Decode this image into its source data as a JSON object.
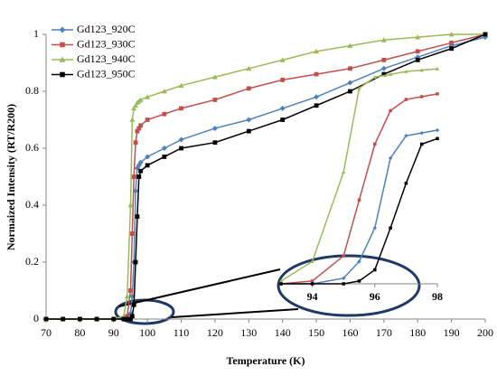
{
  "chart_data": {
    "type": "line",
    "x_label": "Temperature (K)",
    "y_label": "Normaized Intensity (RT/R200)",
    "x": [
      70,
      75,
      80,
      85,
      90,
      93,
      94,
      95,
      95.5,
      96,
      96.5,
      97,
      97.5,
      98,
      100,
      105,
      110,
      120,
      130,
      140,
      150,
      160,
      170,
      180,
      190,
      200
    ],
    "series": [
      {
        "name": "Gd123_920C",
        "color": "#4f81bd",
        "marker": "diamond",
        "values": [
          0,
          0,
          0,
          0,
          0,
          0,
          0,
          0.02,
          0.08,
          0.2,
          0.45,
          0.53,
          0.54,
          0.55,
          0.57,
          0.6,
          0.63,
          0.67,
          0.7,
          0.74,
          0.78,
          0.83,
          0.88,
          0.92,
          0.96,
          0.99
        ]
      },
      {
        "name": "Gd123_930C",
        "color": "#c0504d",
        "marker": "square",
        "values": [
          0,
          0,
          0,
          0,
          0,
          0,
          0.01,
          0.1,
          0.3,
          0.5,
          0.62,
          0.66,
          0.67,
          0.68,
          0.7,
          0.72,
          0.74,
          0.77,
          0.81,
          0.84,
          0.86,
          0.88,
          0.91,
          0.94,
          0.97,
          1.0
        ]
      },
      {
        "name": "Gd123_940C",
        "color": "#9bbb59",
        "marker": "triangle",
        "values": [
          0,
          0,
          0,
          0,
          0,
          0.01,
          0.08,
          0.4,
          0.7,
          0.74,
          0.75,
          0.76,
          0.765,
          0.77,
          0.78,
          0.8,
          0.82,
          0.85,
          0.88,
          0.91,
          0.94,
          0.96,
          0.98,
          0.99,
          1.0,
          1.0
        ]
      },
      {
        "name": "Gd123_950C",
        "color": "#000000",
        "marker": "square",
        "values": [
          0,
          0,
          0,
          0,
          0,
          0,
          0,
          0,
          0.01,
          0.05,
          0.2,
          0.36,
          0.5,
          0.52,
          0.54,
          0.57,
          0.6,
          0.62,
          0.66,
          0.7,
          0.75,
          0.8,
          0.86,
          0.91,
          0.95,
          1.0
        ]
      }
    ],
    "xlim": [
      70,
      200
    ],
    "xticks": [
      70,
      80,
      90,
      100,
      110,
      120,
      130,
      140,
      150,
      160,
      170,
      180,
      190,
      200
    ],
    "ylim": [
      0,
      1
    ],
    "yticks": [
      0,
      0.2,
      0.4,
      0.6,
      0.8,
      1
    ],
    "legend": "upper left",
    "inset": {
      "xlim": [
        93,
        98
      ],
      "xticks": [
        94,
        96,
        98
      ],
      "ylim": [
        0,
        1
      ]
    }
  }
}
